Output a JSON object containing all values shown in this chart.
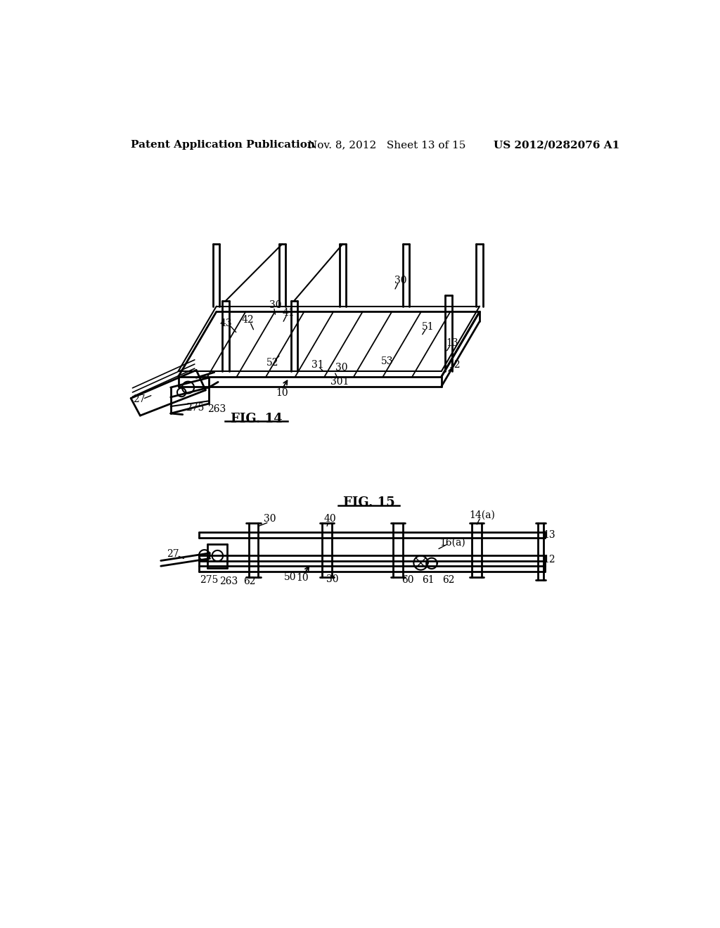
{
  "background_color": "#ffffff",
  "header": {
    "left": "Patent Application Publication",
    "center": "Nov. 8, 2012   Sheet 13 of 15",
    "right": "US 2012/0282076 A1",
    "fontsize": 11
  },
  "fig14_title": "FIG. 14",
  "fig15_title": "FIG. 15",
  "label_fontsize": 10,
  "title_fontsize": 13
}
